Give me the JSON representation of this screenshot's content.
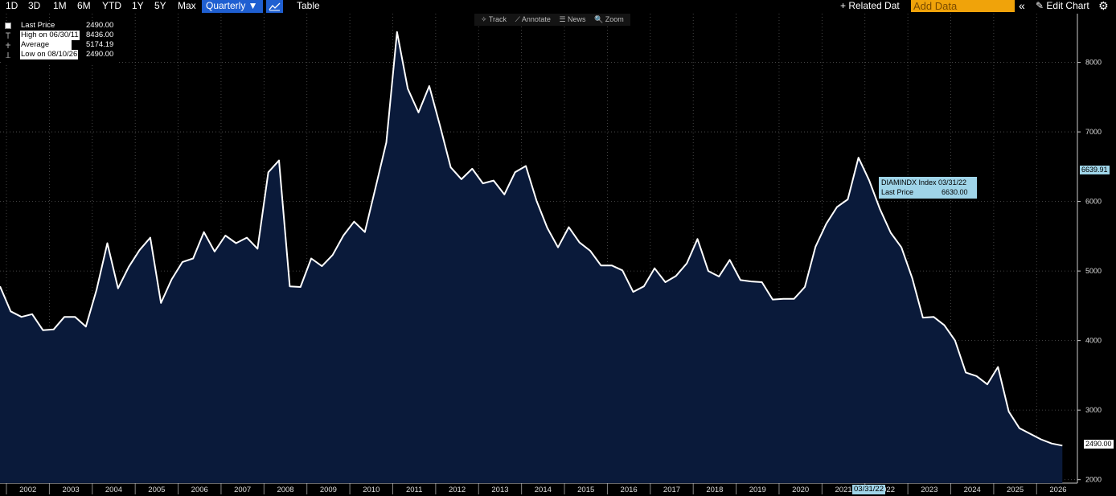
{
  "toolbar": {
    "ranges": [
      "1D",
      "3D",
      "1M",
      "6M",
      "YTD",
      "1Y",
      "5Y",
      "Max"
    ],
    "period": "Quarterly ▼",
    "table": "Table",
    "related": "+ Related Dat",
    "add_data_placeholder": "Add Data",
    "collapse": "«",
    "edit_chart": "✎ Edit Chart",
    "gear": "⚙"
  },
  "chart_tools": [
    "✧ Track",
    "⟋ Annotate",
    "☰ News",
    "🔍 Zoom"
  ],
  "legend": {
    "rows": [
      {
        "label": "Last Price",
        "value": "2490.00"
      },
      {
        "label": "High on 06/30/11",
        "value": "8436.00"
      },
      {
        "label": "Average",
        "value": "5174.19"
      },
      {
        "label": "Low on 08/10/26",
        "value": "2490.00"
      }
    ]
  },
  "tooltip": {
    "title": "DIAMINDX Index 03/31/22",
    "label": "Last Price",
    "value": "6630.00"
  },
  "price_tags": {
    "high_tag": "6639.91",
    "last_tag": "2490.00"
  },
  "crosshair_date": "03/31/22",
  "colors": {
    "area_fill": "#0a1a3a",
    "line": "#ffffff",
    "active_button": "#1f5fd1",
    "add_data": "#f0a30a",
    "tooltip": "#9fd4e8"
  },
  "chart_data": {
    "type": "area",
    "series_name": "DIAMINDX Index",
    "ylim": [
      1950,
      8700
    ],
    "yticks": [
      2000,
      3000,
      4000,
      5000,
      6000,
      7000,
      8000
    ],
    "ytick_labels": [
      "2000",
      "3000",
      "4000",
      "5000",
      "6000",
      "7000",
      "8000"
    ],
    "xticks": [
      "2002",
      "2003",
      "2004",
      "2005",
      "2006",
      "2007",
      "2008",
      "2009",
      "2010",
      "2011",
      "2012",
      "2013",
      "2014",
      "2015",
      "2016",
      "2017",
      "2018",
      "2019",
      "2020",
      "2021",
      "2022",
      "2023",
      "2024",
      "2025",
      "2026"
    ],
    "xlim": [
      2001.85,
      2026.95
    ],
    "x": [
      2001.85,
      2002.1,
      2002.35,
      2002.6,
      2002.85,
      2003.1,
      2003.35,
      2003.6,
      2003.85,
      2004.1,
      2004.35,
      2004.6,
      2004.85,
      2005.1,
      2005.35,
      2005.6,
      2005.85,
      2006.1,
      2006.35,
      2006.6,
      2006.85,
      2007.1,
      2007.35,
      2007.6,
      2007.85,
      2008.1,
      2008.35,
      2008.6,
      2008.85,
      2009.1,
      2009.35,
      2009.6,
      2009.85,
      2010.1,
      2010.35,
      2010.6,
      2010.85,
      2011.1,
      2011.35,
      2011.6,
      2011.85,
      2012.1,
      2012.35,
      2012.6,
      2012.85,
      2013.1,
      2013.35,
      2013.6,
      2013.85,
      2014.1,
      2014.35,
      2014.6,
      2014.85,
      2015.1,
      2015.35,
      2015.6,
      2015.85,
      2016.1,
      2016.35,
      2016.6,
      2016.85,
      2017.1,
      2017.35,
      2017.6,
      2017.85,
      2018.1,
      2018.35,
      2018.6,
      2018.85,
      2019.1,
      2019.35,
      2019.6,
      2019.85,
      2020.1,
      2020.35,
      2020.6,
      2020.85,
      2021.1,
      2021.35,
      2021.6,
      2021.85,
      2022.1,
      2022.35,
      2022.6,
      2022.85,
      2023.1,
      2023.35,
      2023.6,
      2023.85,
      2024.1,
      2024.35,
      2024.6,
      2024.85,
      2025.1,
      2025.35,
      2025.6,
      2025.85,
      2026.1,
      2026.35,
      2026.6
    ],
    "y": [
      4780,
      4420,
      4340,
      4380,
      4150,
      4160,
      4340,
      4340,
      4200,
      4730,
      5400,
      4750,
      5060,
      5300,
      5480,
      4540,
      4880,
      5130,
      5180,
      5560,
      5280,
      5510,
      5400,
      5480,
      5320,
      6420,
      6590,
      4780,
      4770,
      5180,
      5070,
      5230,
      5510,
      5710,
      5560,
      6200,
      6850,
      8436,
      7620,
      7280,
      7660,
      7090,
      6490,
      6320,
      6470,
      6260,
      6300,
      6100,
      6420,
      6510,
      6010,
      5620,
      5340,
      5630,
      5410,
      5290,
      5080,
      5080,
      5010,
      4700,
      4780,
      5040,
      4840,
      4930,
      5110,
      5460,
      5000,
      4920,
      5160,
      4870,
      4850,
      4840,
      4590,
      4600,
      4600,
      4770,
      5350,
      5680,
      5920,
      6030,
      6630,
      6300,
      5890,
      5550,
      5340,
      4900,
      4330,
      4340,
      4220,
      4000,
      3540,
      3490,
      3370,
      3620,
      2980,
      2740,
      2660,
      2580,
      2520,
      2490
    ],
    "title": "",
    "xlabel": "",
    "ylabel": "",
    "grid": true,
    "legend_position": "top-left"
  }
}
